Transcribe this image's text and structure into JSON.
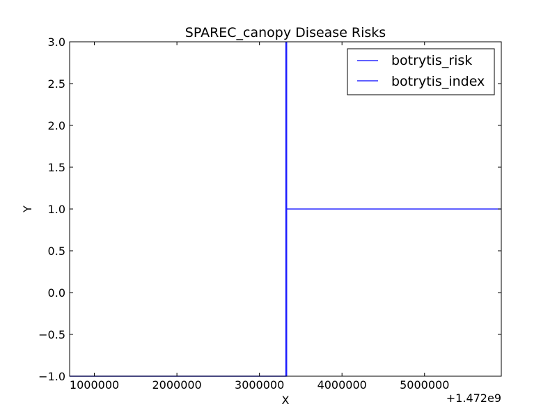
{
  "chart_data": {
    "type": "line",
    "title": "SPAREC_canopy Disease Risks",
    "xlabel": "X",
    "ylabel": "Y",
    "x_offset_label": "+1.472e9",
    "xlim": [
      700000,
      5930000
    ],
    "ylim": [
      -1.0,
      3.0
    ],
    "xticks": [
      1000000,
      2000000,
      3000000,
      4000000,
      5000000
    ],
    "xtick_labels": [
      "1000000",
      "2000000",
      "3000000",
      "4000000",
      "5000000"
    ],
    "yticks": [
      -1.0,
      -0.5,
      0.0,
      0.5,
      1.0,
      1.5,
      2.0,
      2.5,
      3.0
    ],
    "ytick_labels": [
      "−1.0",
      "−0.5",
      "0.0",
      "0.5",
      "1.0",
      "1.5",
      "2.0",
      "2.5",
      "3.0"
    ],
    "grid": false,
    "legend_position": "top-right",
    "series": [
      {
        "name": "botrytis_risk",
        "color": "#0000ff",
        "x": [
          700000,
          3320000,
          3320000,
          3320000,
          3320000
        ],
        "y": [
          -1.0,
          -1.0,
          3.0,
          -1.0,
          -1.0
        ]
      },
      {
        "name": "botrytis_index",
        "color": "#0000ff",
        "x": [
          700000,
          3330000,
          3330000,
          3330000,
          5930000
        ],
        "y": [
          -1.0,
          -1.0,
          3.0,
          1.0,
          1.0
        ]
      }
    ]
  }
}
